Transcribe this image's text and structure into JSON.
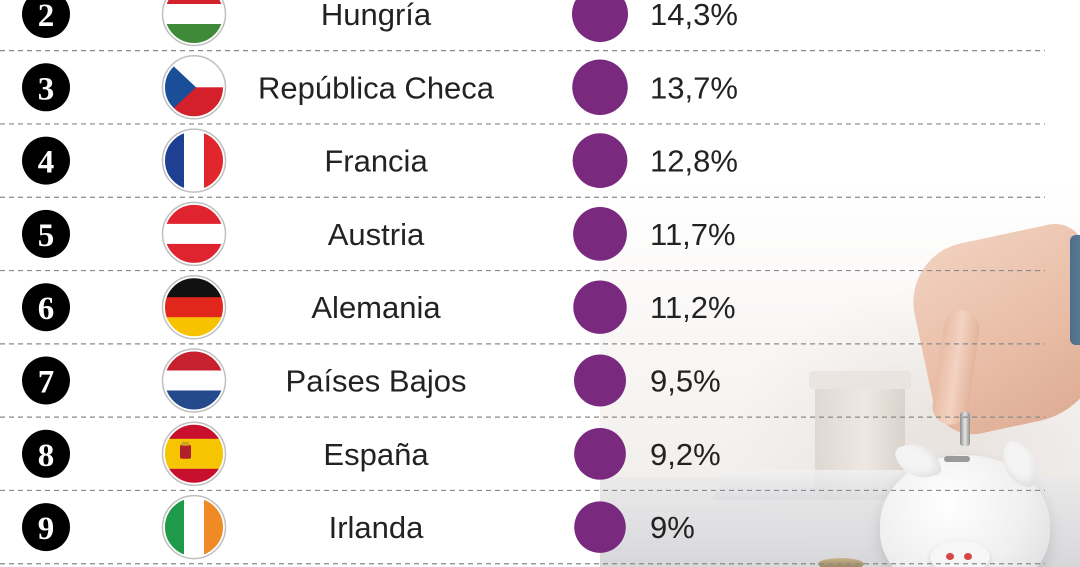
{
  "chart_data": {
    "type": "table",
    "columns": [
      "rank",
      "country",
      "value"
    ],
    "rows": [
      {
        "rank": "2",
        "country": "Hungría",
        "flag": "hungary-flag",
        "value": 14.3,
        "label": "14,3%"
      },
      {
        "rank": "3",
        "country": "República Checa",
        "flag": "czech-republic-flag",
        "value": 13.7,
        "label": "13,7%"
      },
      {
        "rank": "4",
        "country": "Francia",
        "flag": "france-flag",
        "value": 12.8,
        "label": "12,8%"
      },
      {
        "rank": "5",
        "country": "Austria",
        "flag": "austria-flag",
        "value": 11.7,
        "label": "11,7%"
      },
      {
        "rank": "6",
        "country": "Alemania",
        "flag": "germany-flag",
        "value": 11.2,
        "label": "11,2%"
      },
      {
        "rank": "7",
        "country": "Países Bajos",
        "flag": "netherlands-flag",
        "value": 9.5,
        "label": "9,5%"
      },
      {
        "rank": "8",
        "country": "España",
        "flag": "spain-flag",
        "value": 9.2,
        "label": "9,2%"
      },
      {
        "rank": "9",
        "country": "Irlanda",
        "flag": "ireland-flag",
        "value": 9.0,
        "label": "9%"
      }
    ],
    "marker_color": "#7a2a7e",
    "rank_badge_color": "#000000",
    "separator": "dashed"
  }
}
